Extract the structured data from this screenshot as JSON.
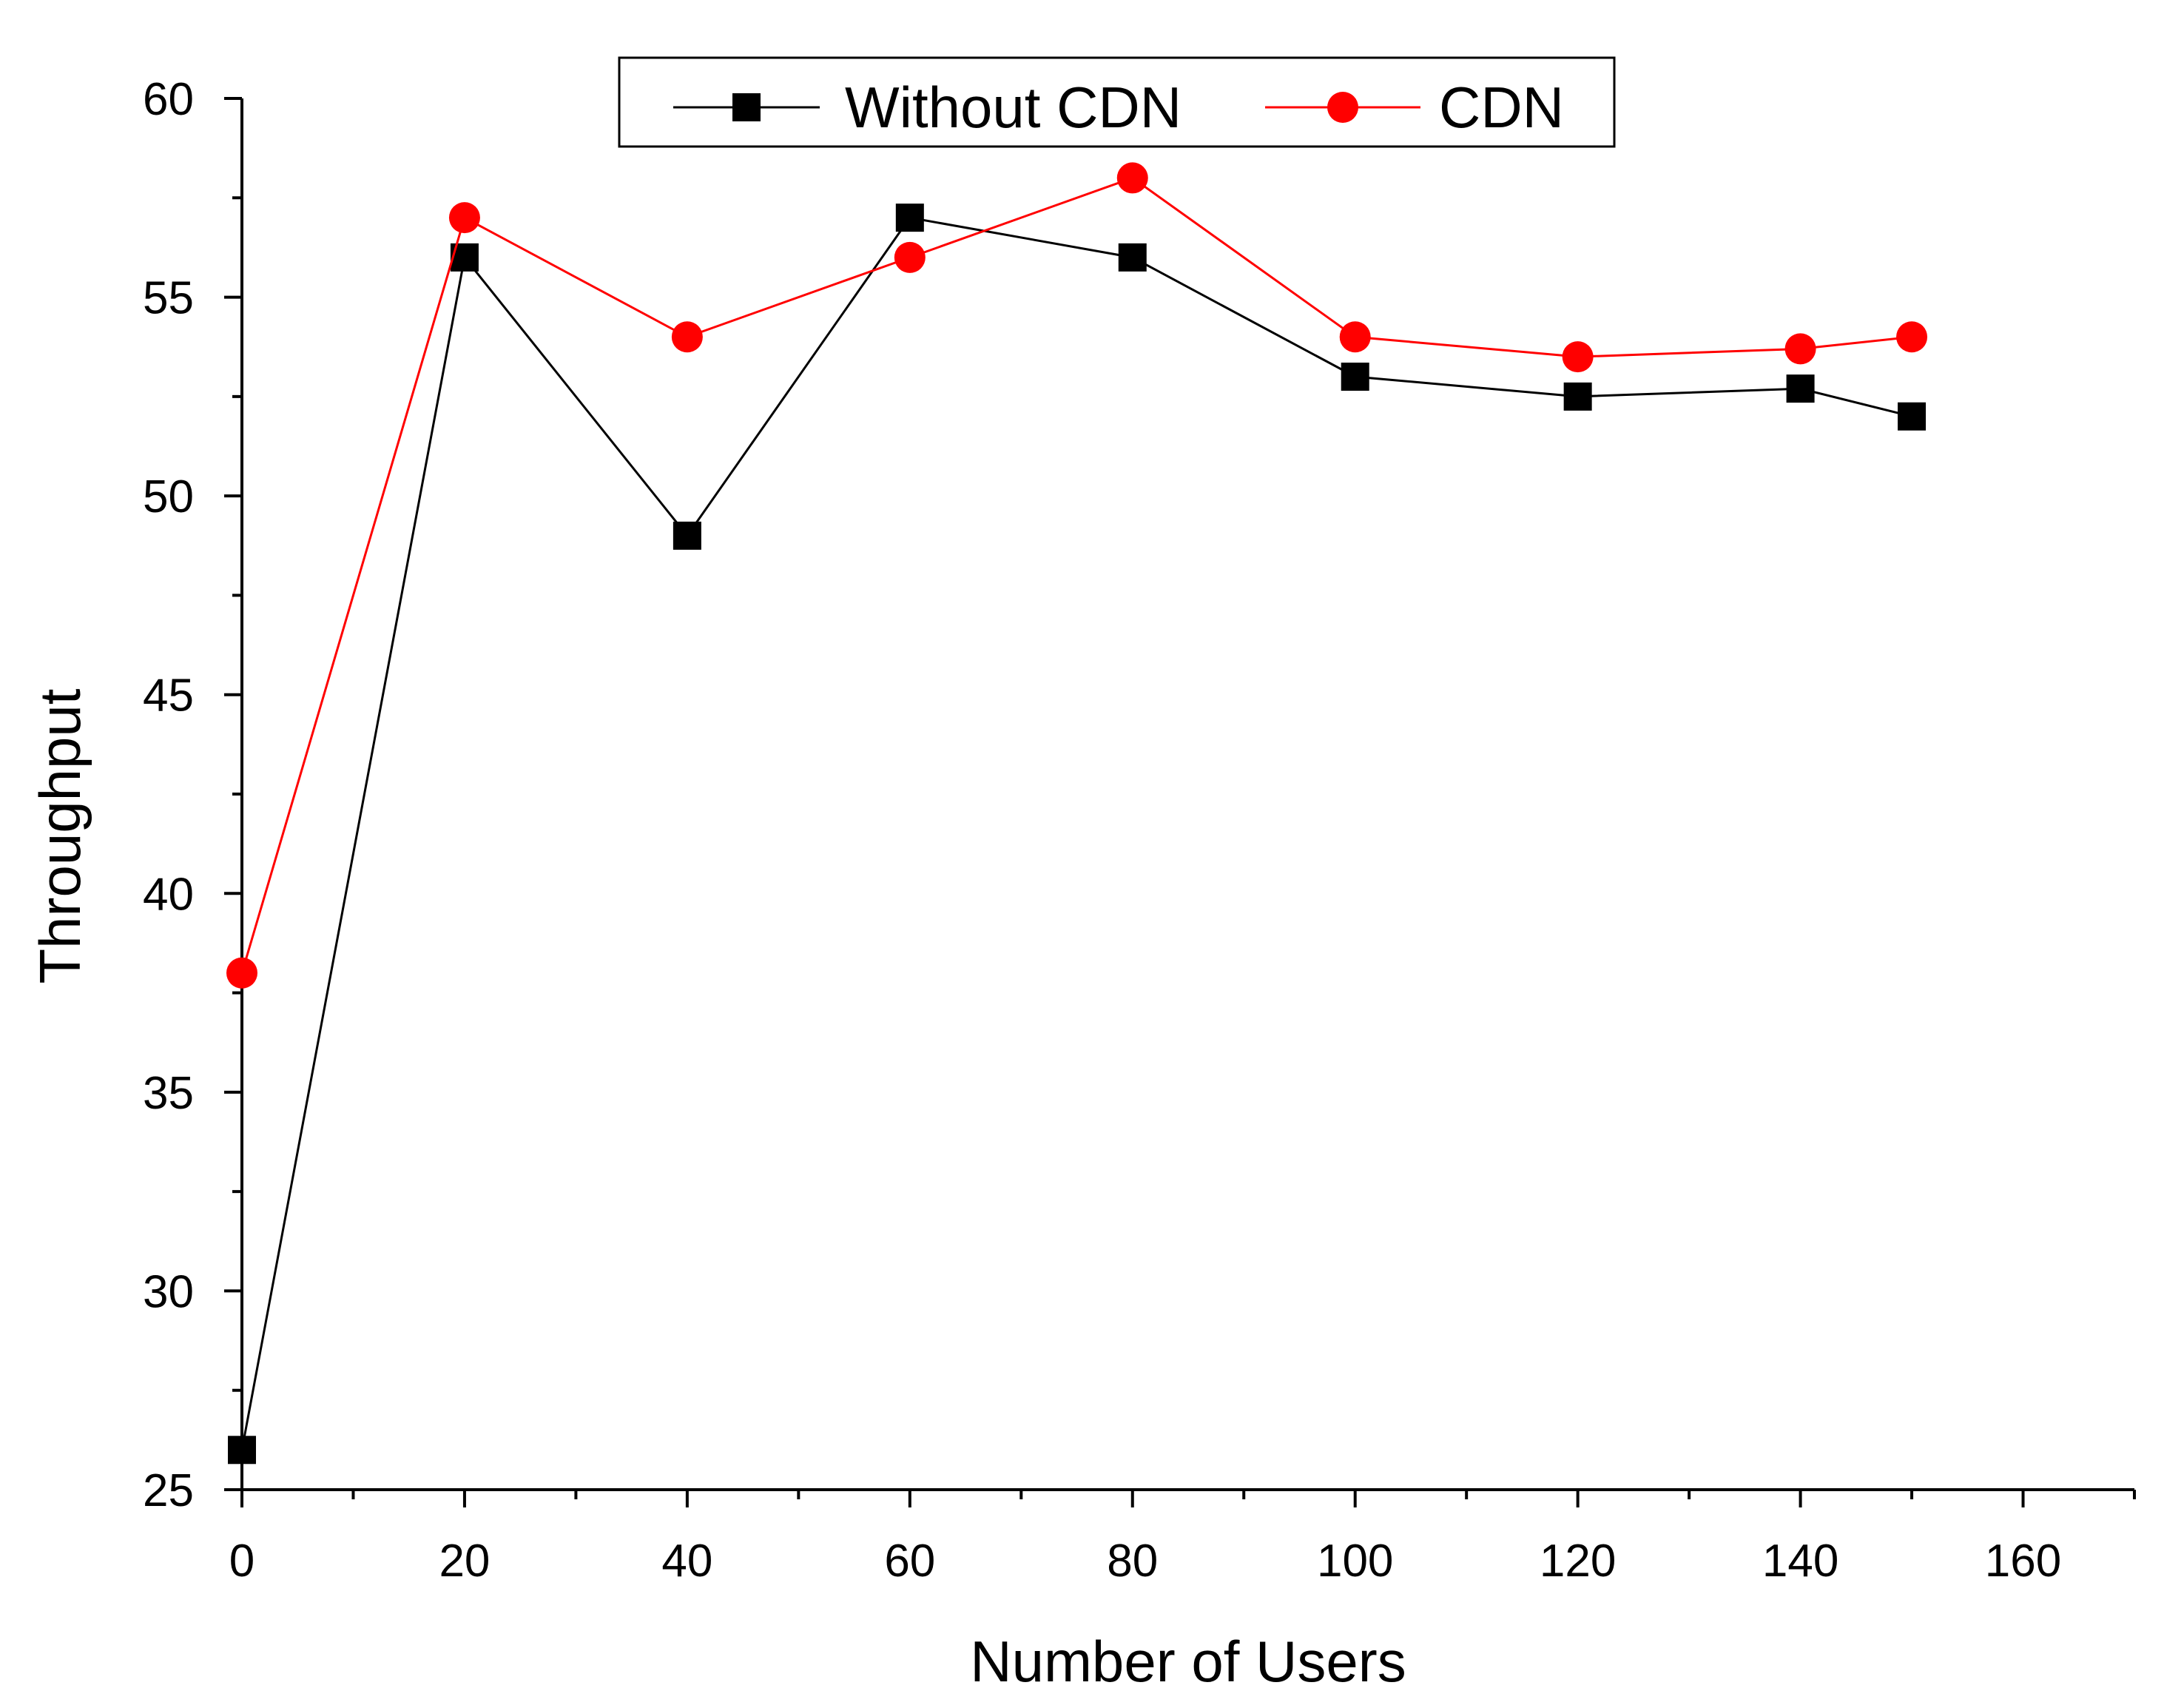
{
  "chart_data": {
    "type": "line",
    "title": "",
    "xlabel": "Number of Users",
    "ylabel": "Throughput",
    "xlim": [
      0,
      170
    ],
    "ylim": [
      25,
      60
    ],
    "xticks": [
      0,
      20,
      40,
      60,
      80,
      100,
      120,
      140,
      160
    ],
    "xtick_labels": [
      "0",
      "20",
      "40",
      "60",
      "80",
      "100",
      "120",
      "140",
      "160"
    ],
    "yticks": [
      25,
      30,
      35,
      40,
      45,
      50,
      55,
      60
    ],
    "ytick_labels": [
      "25",
      "30",
      "35",
      "40",
      "45",
      "50",
      "55",
      "60"
    ],
    "grid": false,
    "legend_position": "top-center",
    "x": [
      0,
      20,
      40,
      60,
      80,
      100,
      120,
      140,
      150
    ],
    "series": [
      {
        "name": "Without CDN",
        "color": "#000000",
        "marker": "square",
        "values": [
          26,
          56,
          49,
          57,
          56,
          53,
          52.5,
          52.7,
          52
        ]
      },
      {
        "name": "CDN",
        "color": "#ff0000",
        "marker": "circle",
        "values": [
          38,
          57,
          54,
          56,
          58,
          54,
          53.5,
          53.7,
          54
        ]
      }
    ]
  }
}
